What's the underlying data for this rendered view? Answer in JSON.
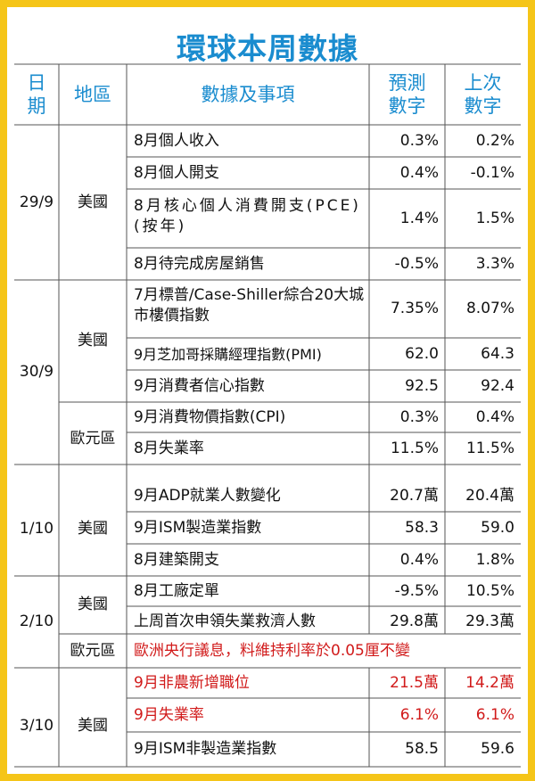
{
  "title": "環球本周數據",
  "headers": {
    "date": "日期",
    "region": "地區",
    "item": "數據及事項",
    "forecast": "預測數字",
    "previous": "上次數字"
  },
  "groups": [
    {
      "date": "29/9",
      "region": "美國"
    },
    {
      "date": "30/9",
      "regions": [
        "美國",
        "歐元區"
      ]
    },
    {
      "date": "1/10",
      "region": "美國"
    },
    {
      "date": "2/10",
      "regions": [
        "美國",
        "歐元區"
      ]
    },
    {
      "date": "3/10",
      "region": "美國"
    }
  ],
  "rows": [
    {
      "item": "8月個人收入",
      "forecast": "0.3%",
      "previous": "0.2%"
    },
    {
      "item": "8月個人開支",
      "forecast": "0.4%",
      "previous": "-0.1%"
    },
    {
      "item": "8月核心個人消費開支(PCE)(按年)",
      "forecast": "1.4%",
      "previous": "1.5%"
    },
    {
      "item": "8月待完成房屋銷售",
      "forecast": "-0.5%",
      "previous": "3.3%"
    },
    {
      "item": "7月標普/Case-Shiller綜合20大城市樓價指數",
      "forecast": "7.35%",
      "previous": "8.07%"
    },
    {
      "item": "9月芝加哥採購經理指數(PMI)",
      "forecast": "62.0",
      "previous": "64.3"
    },
    {
      "item": "9月消費者信心指數",
      "forecast": "92.5",
      "previous": "92.4"
    },
    {
      "item": "9月消費物價指數(CPI)",
      "forecast": "0.3%",
      "previous": "0.4%"
    },
    {
      "item": "8月失業率",
      "forecast": "11.5%",
      "previous": "11.5%"
    },
    {
      "item": "9月ADP就業人數變化",
      "forecast": "20.7萬",
      "previous": "20.4萬"
    },
    {
      "item": "9月ISM製造業指數",
      "forecast": "58.3",
      "previous": "59.0"
    },
    {
      "item": "8月建築開支",
      "forecast": "0.4%",
      "previous": "1.8%"
    },
    {
      "item": "8月工廠定單",
      "forecast": "-9.5%",
      "previous": "10.5%"
    },
    {
      "item": "上周首次申領失業救濟人數",
      "forecast": "29.8萬",
      "previous": "29.3萬"
    },
    {
      "item": "歐洲央行議息，料維持利率於0.05厘不變"
    },
    {
      "item": "9月非農新增職位",
      "forecast": "21.5萬",
      "previous": "14.2萬"
    },
    {
      "item": "9月失業率",
      "forecast": "6.1%",
      "previous": "6.1%"
    },
    {
      "item": "9月ISM非製造業指數",
      "forecast": "58.5",
      "previous": "59.6"
    }
  ],
  "colors": {
    "title": "#1a8ccf",
    "highlight": "#d11a1a",
    "frame": "#f5c518",
    "rule": "#555555"
  }
}
